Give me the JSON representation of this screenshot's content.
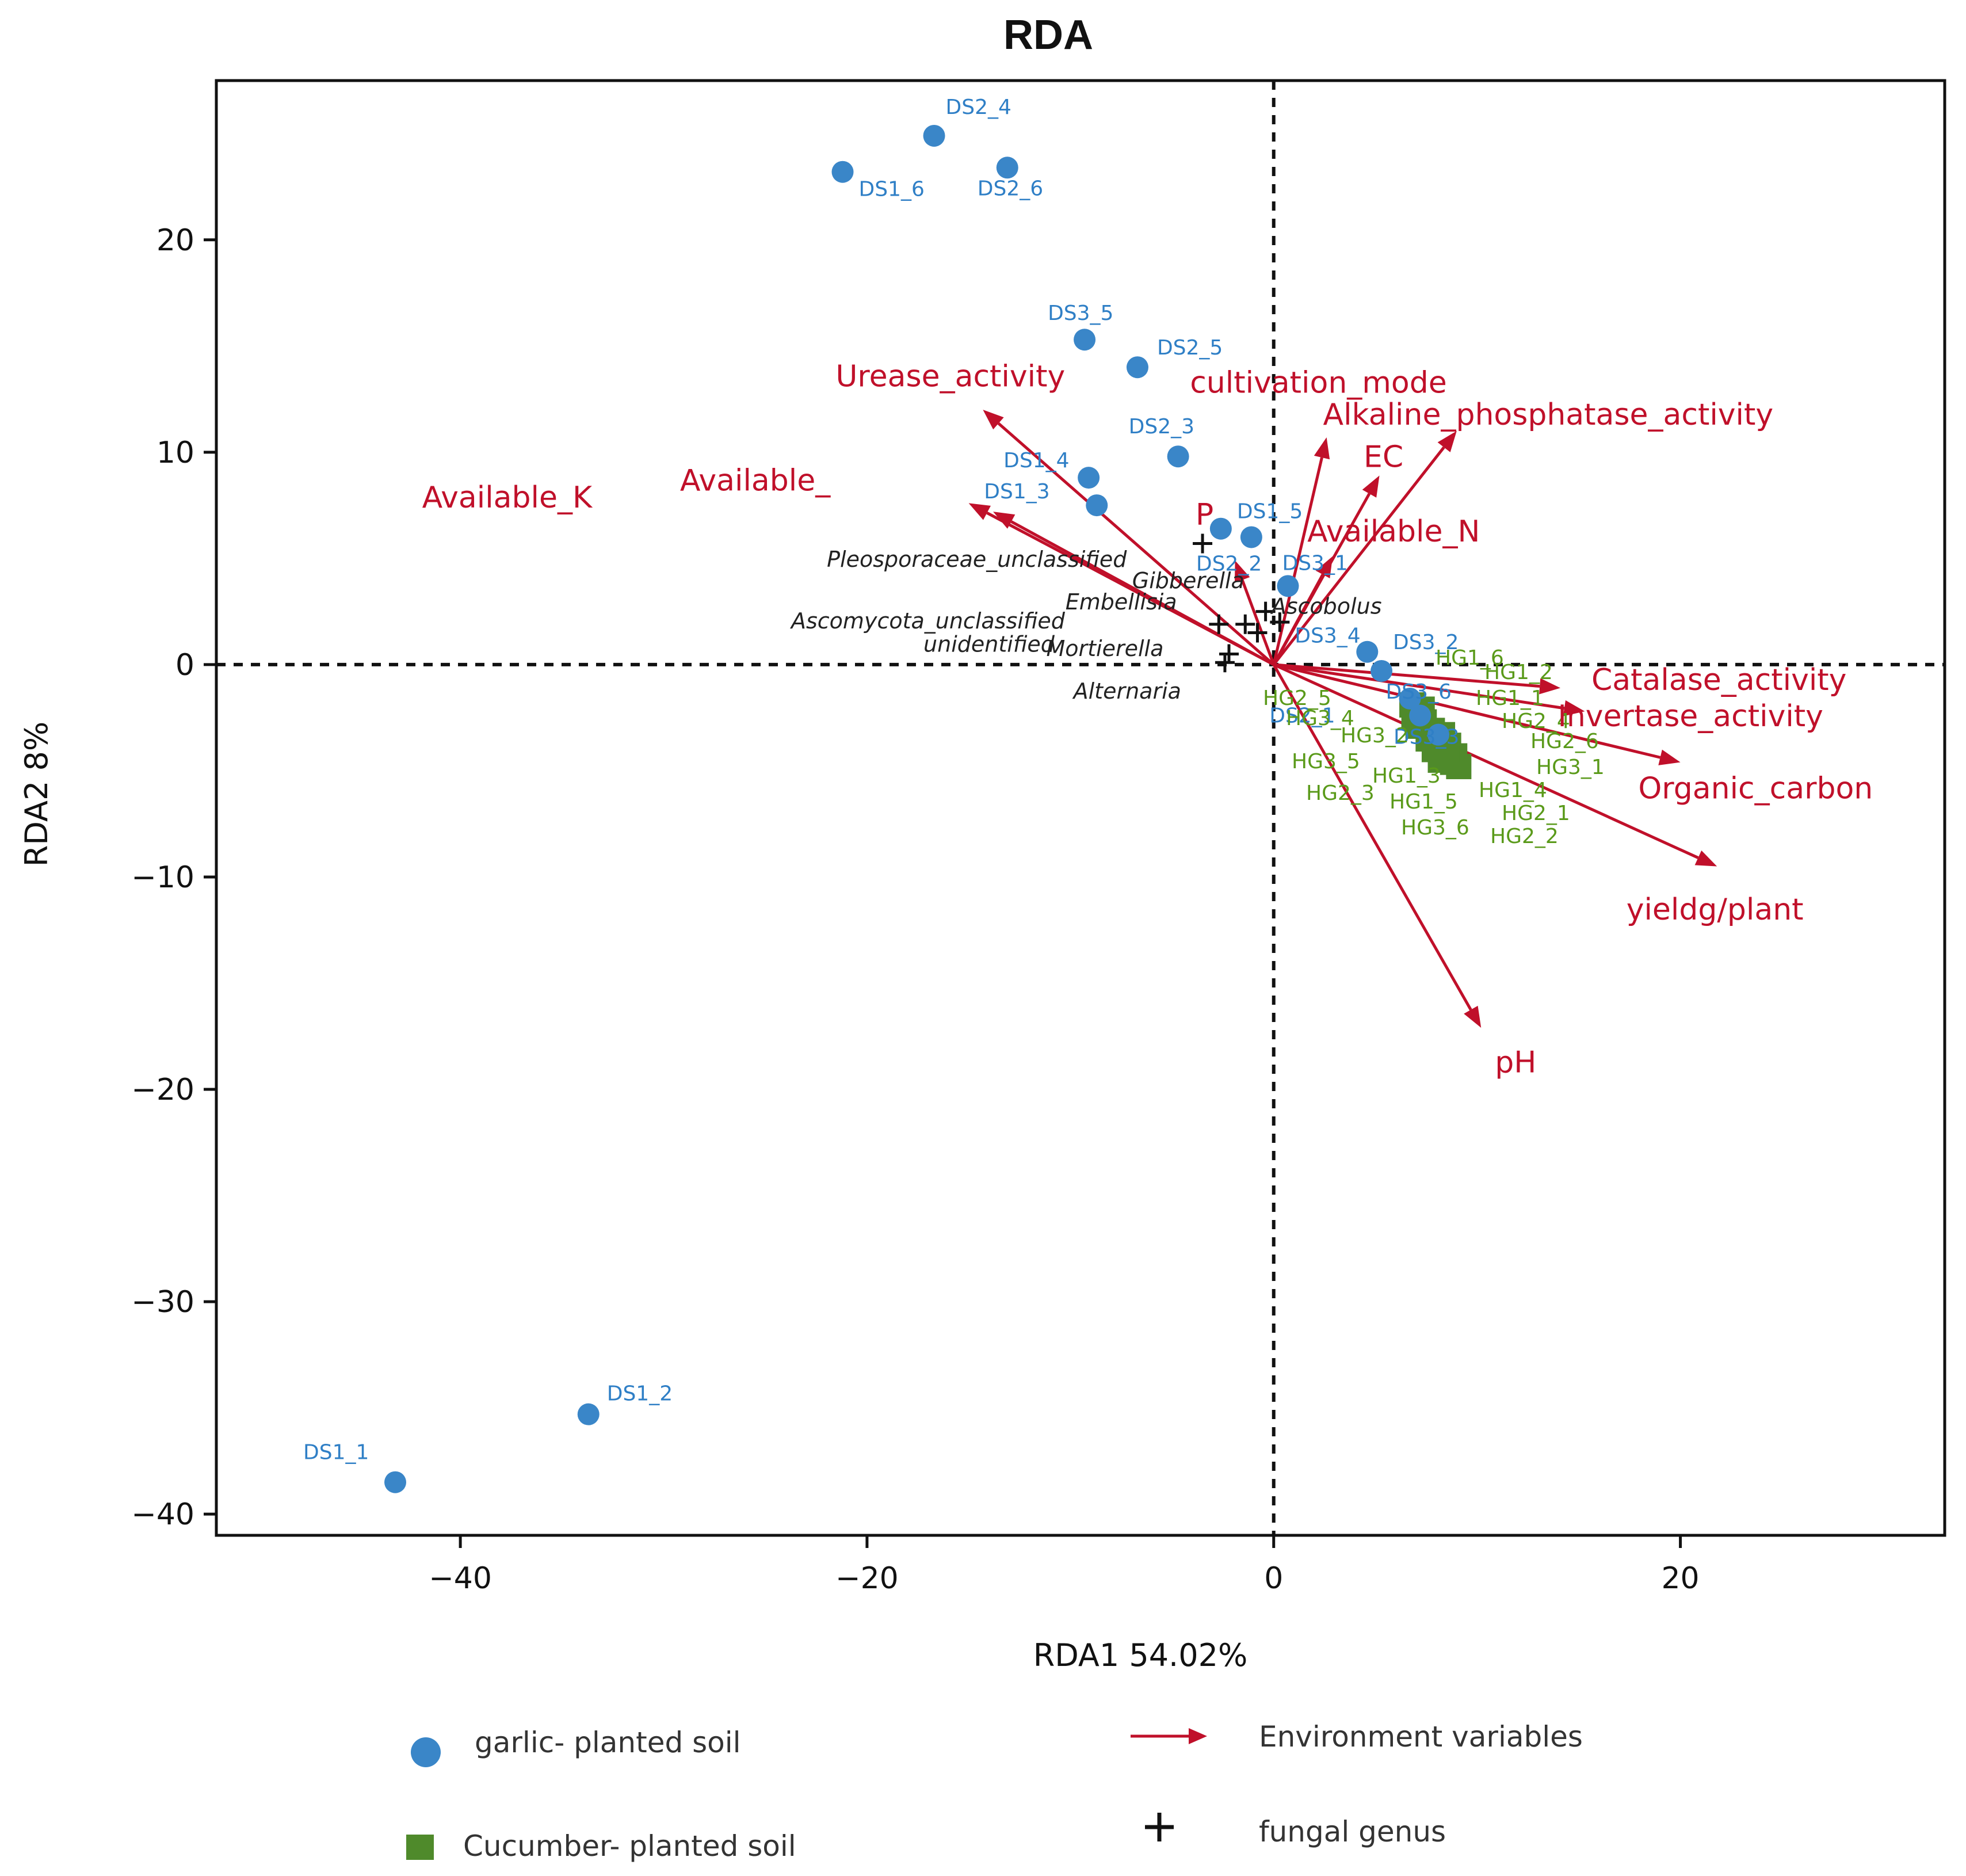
{
  "chart_data": {
    "type": "scatter",
    "title": "RDA",
    "xlabel": "RDA1  54.02%",
    "ylabel": "RDA2  8%",
    "xlim": [
      -52,
      33
    ],
    "ylim": [
      -41,
      27.5
    ],
    "xticks": [
      -40,
      -20,
      0,
      20
    ],
    "yticks": [
      20,
      10,
      0,
      -10,
      -20,
      -30,
      -40
    ],
    "colors": {
      "garlic": "#3a86c8",
      "cucumber": "#4f8a2b",
      "env": "#c0102a",
      "genus": "#111111",
      "ds_label": "#2f7fc6",
      "hg_label": "#5a9a1a"
    },
    "garlic_samples": [
      {
        "name": "DS2_4",
        "x": -16.7,
        "y": 24.9
      },
      {
        "name": "DS1_6",
        "x": -21.2,
        "y": 23.2
      },
      {
        "name": "DS2_6",
        "x": -13.1,
        "y": 23.4
      },
      {
        "name": "DS3_5",
        "x": -9.3,
        "y": 15.3
      },
      {
        "name": "DS2_5",
        "x": -6.7,
        "y": 14.0
      },
      {
        "name": "DS2_3",
        "x": -4.7,
        "y": 9.8
      },
      {
        "name": "DS1_4",
        "x": -9.1,
        "y": 8.8
      },
      {
        "name": "DS1_3",
        "x": -8.7,
        "y": 7.5
      },
      {
        "name": "DS1_5",
        "x": -2.6,
        "y": 6.4
      },
      {
        "name": "DS2_2",
        "x": -1.1,
        "y": 6.0
      },
      {
        "name": "DS3_1",
        "x": 0.7,
        "y": 3.7
      },
      {
        "name": "DS3_4",
        "x": 4.6,
        "y": 0.6
      },
      {
        "name": "DS3_2",
        "x": 5.3,
        "y": -0.3
      },
      {
        "name": "DS3_6",
        "x": 6.7,
        "y": -1.6
      },
      {
        "name": "DS2_1",
        "x": 7.2,
        "y": -2.4
      },
      {
        "name": "DS3_3",
        "x": 8.1,
        "y": -3.3
      },
      {
        "name": "DS1_2",
        "x": -33.7,
        "y": -35.3
      },
      {
        "name": "DS1_1",
        "x": -43.2,
        "y": -38.5
      }
    ],
    "cucumber_samples": [
      {
        "name": "HG1_6",
        "x": 6.8,
        "y": -1.9
      },
      {
        "name": "HG1_2",
        "x": 7.3,
        "y": -2.1
      },
      {
        "name": "HG3_4",
        "x": 6.9,
        "y": -2.5
      },
      {
        "name": "HG1_1",
        "x": 7.4,
        "y": -2.7
      },
      {
        "name": "HG2_4",
        "x": 7.1,
        "y": -2.9
      },
      {
        "name": "HG3_2",
        "x": 7.8,
        "y": -3.1
      },
      {
        "name": "HG2_6",
        "x": 8.3,
        "y": -3.3
      },
      {
        "name": "HG3_5",
        "x": 7.6,
        "y": -3.5
      },
      {
        "name": "HG3_1",
        "x": 8.1,
        "y": -3.6
      },
      {
        "name": "HG1_3",
        "x": 8.6,
        "y": -3.8
      },
      {
        "name": "HG2_3",
        "x": 7.9,
        "y": -4.0
      },
      {
        "name": "HG1_4",
        "x": 8.4,
        "y": -4.2
      },
      {
        "name": "HG1_5",
        "x": 8.9,
        "y": -4.3
      },
      {
        "name": "HG2_1",
        "x": 8.2,
        "y": -4.5
      },
      {
        "name": "HG3_6",
        "x": 8.8,
        "y": -4.6
      },
      {
        "name": "HG2_2",
        "x": 9.1,
        "y": -4.8
      },
      {
        "name": "HG2_5",
        "x": 8.5,
        "y": -4.0
      }
    ],
    "environment_variables": [
      {
        "name": "Urease_activity",
        "x": -14.3,
        "y": 12.0
      },
      {
        "name": "Available_K",
        "x": -13.8,
        "y": 7.2
      },
      {
        "name": "Available_",
        "x": -15.0,
        "y": 7.6
      },
      {
        "name": "P",
        "x": -1.9,
        "y": 4.9
      },
      {
        "name": "cultivation_mode",
        "x": 2.6,
        "y": 10.7
      },
      {
        "name": "EC",
        "x": 5.2,
        "y": 8.9
      },
      {
        "name": "Alkaline_phosphatase_activity",
        "x": 9.0,
        "y": 11.0
      },
      {
        "name": "Available_N",
        "x": 2.9,
        "y": 5.1
      },
      {
        "name": "Catalase_activity",
        "x": 14.1,
        "y": -1.1
      },
      {
        "name": "Invertase_activity",
        "x": 15.3,
        "y": -2.2
      },
      {
        "name": "Organic_carbon",
        "x": 20.0,
        "y": -4.6
      },
      {
        "name": "yieldg/plant",
        "x": 21.8,
        "y": -9.5
      },
      {
        "name": "pH",
        "x": 10.2,
        "y": -17.1
      }
    ],
    "env_label_positions": [
      {
        "name": "Urease_activity",
        "x": -15.9,
        "y": 13.1
      },
      {
        "name": "Available_K",
        "x": -37.7,
        "y": 7.4
      },
      {
        "name": "Available_",
        "x": -25.5,
        "y": 8.2
      },
      {
        "name": "P",
        "x": -3.4,
        "y": 6.6
      },
      {
        "name": "cultivation_mode",
        "x": 2.2,
        "y": 12.8
      },
      {
        "name": "EC",
        "x": 5.4,
        "y": 9.3
      },
      {
        "name": "Alkaline_phosphatase_activity",
        "x": 13.5,
        "y": 11.3
      },
      {
        "name": "Available_N",
        "x": 5.9,
        "y": 5.8
      },
      {
        "name": "Catalase_activity",
        "x": 21.9,
        "y": -1.2
      },
      {
        "name": "Invertase_activity",
        "x": 20.5,
        "y": -2.9
      },
      {
        "name": "Organic_carbon",
        "x": 23.7,
        "y": -6.3
      },
      {
        "name": "yieldg/plant",
        "x": 21.7,
        "y": -12.0
      },
      {
        "name": "pH",
        "x": 11.9,
        "y": -19.2
      }
    ],
    "fungal_genera": [
      {
        "name": "Pleosporaceae_unclassified",
        "x": -3.5,
        "y": 5.7
      },
      {
        "name": "Gibberella",
        "x": -0.4,
        "y": 2.5
      },
      {
        "name": "Embellisia",
        "x": -1.4,
        "y": 1.9
      },
      {
        "name": "Ascobolus",
        "x": 0.3,
        "y": 2.0
      },
      {
        "name": "Ascomycota_unclassified",
        "x": -2.7,
        "y": 1.9
      },
      {
        "name": "unidentified",
        "x": -0.8,
        "y": 1.5
      },
      {
        "name": "Mortierella",
        "x": -2.2,
        "y": 0.5
      },
      {
        "name": "Alternaria",
        "x": -2.4,
        "y": 0.1
      }
    ],
    "genus_label_positions": [
      {
        "name": "Pleosporaceae_unclassified",
        "x": -14.6,
        "y": 4.6
      },
      {
        "name": "Gibberella",
        "x": -4.2,
        "y": 3.6
      },
      {
        "name": "Embellisia",
        "x": -7.5,
        "y": 2.6
      },
      {
        "name": "Ascobolus",
        "x": 2.6,
        "y": 2.4
      },
      {
        "name": "Ascomycota_unclassified",
        "x": -17.0,
        "y": 1.7
      },
      {
        "name": "unidentified",
        "x": -14.0,
        "y": 0.6
      },
      {
        "name": "Mortierella",
        "x": -8.3,
        "y": 0.4
      },
      {
        "name": "Alternaria",
        "x": -7.2,
        "y": -1.6
      }
    ],
    "legend": {
      "garlic": "garlic- planted soil",
      "cucumber": "Cucumber- planted soil",
      "env": "Environment variables",
      "genus": "fungal genus"
    }
  }
}
